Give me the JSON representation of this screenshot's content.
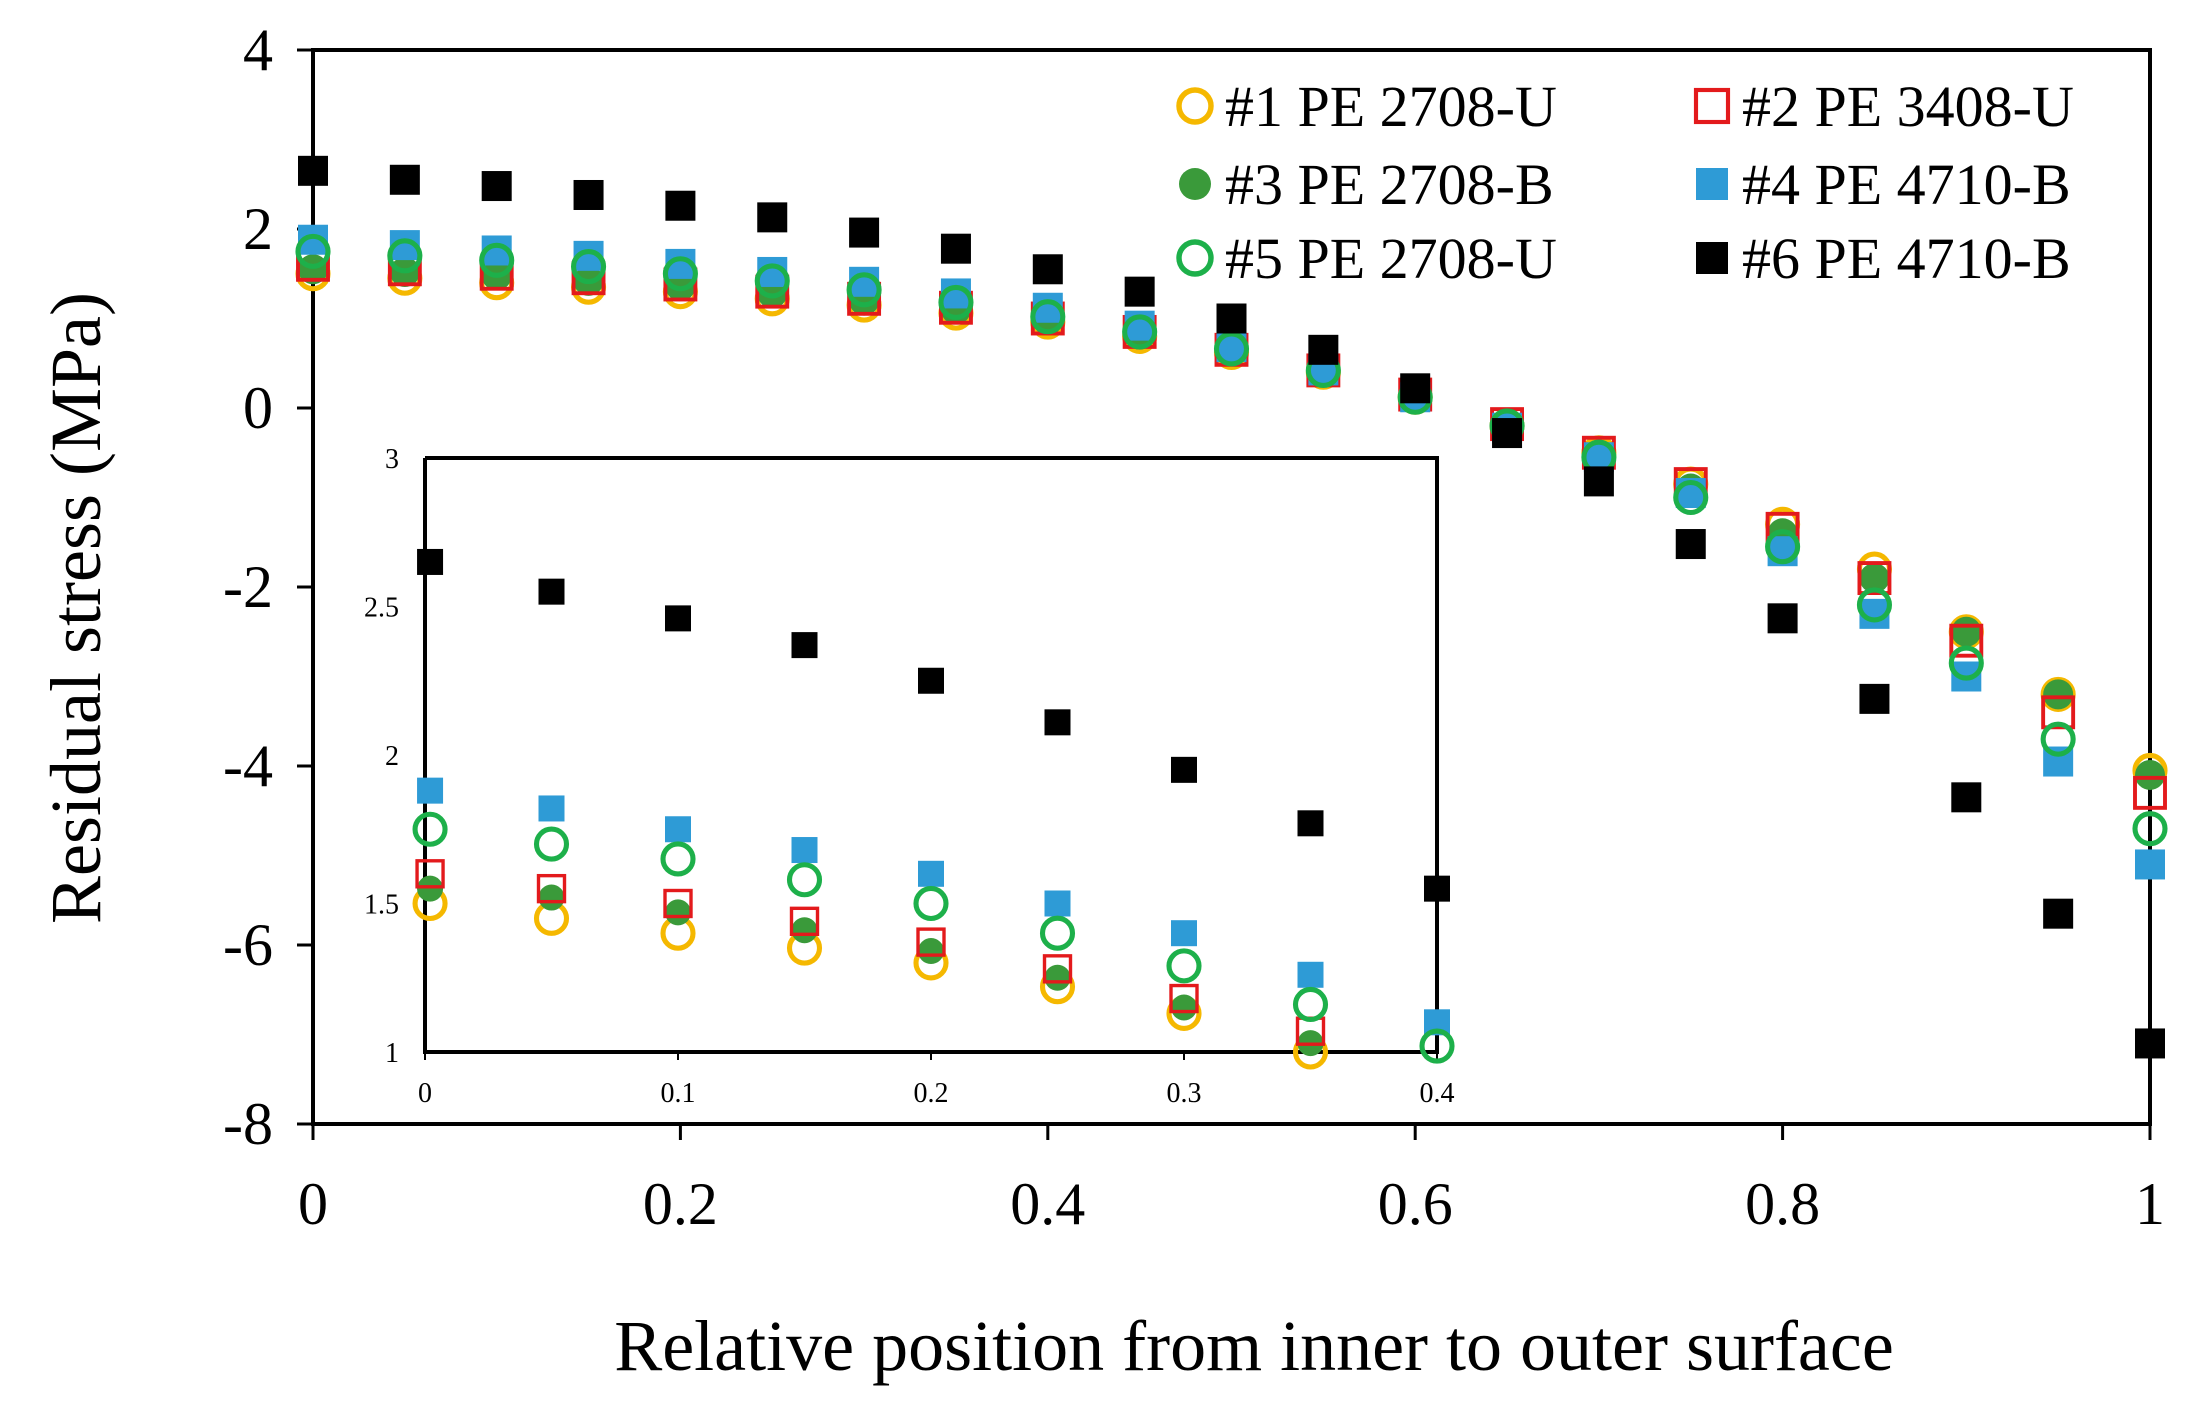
{
  "chart_data": [
    {
      "type": "scatter",
      "xlabel": "Relative position from inner to outer surface",
      "ylabel": "Residual stress (MPa)",
      "xlim": [
        0,
        1
      ],
      "ylim": [
        -8,
        4
      ],
      "xticks": [
        0,
        0.2,
        0.4,
        0.6,
        0.8,
        1
      ],
      "xtick_labels": [
        "0",
        "0.2",
        "0.4",
        "0.6",
        "0.8",
        "1"
      ],
      "yticks": [
        -8,
        -6,
        -4,
        -2,
        0,
        2,
        4
      ],
      "ytick_labels": [
        "-8",
        "-6",
        "-4",
        "-2",
        "0",
        "2",
        "4"
      ],
      "legend_position": "top-right",
      "x": [
        0,
        0.05,
        0.1,
        0.15,
        0.2,
        0.25,
        0.3,
        0.35,
        0.4,
        0.45,
        0.5,
        0.55,
        0.6,
        0.65,
        0.7,
        0.75,
        0.8,
        0.85,
        0.9,
        0.95,
        1
      ],
      "series": [
        {
          "name": "#1 PE 2708-U",
          "marker": "open-circle",
          "color": "#F5B800",
          "values": [
            1.5,
            1.45,
            1.4,
            1.35,
            1.3,
            1.22,
            1.15,
            1.06,
            0.96,
            0.8,
            0.62,
            0.4,
            0.12,
            -0.2,
            -0.5,
            -0.85,
            -1.3,
            -1.8,
            -2.5,
            -3.2,
            -4.05
          ]
        },
        {
          "name": "#2 PE 3408-U",
          "marker": "open-square",
          "color": "#E31A1C",
          "values": [
            1.6,
            1.55,
            1.5,
            1.45,
            1.38,
            1.3,
            1.22,
            1.12,
            1.0,
            0.85,
            0.65,
            0.42,
            0.15,
            -0.18,
            -0.5,
            -0.85,
            -1.35,
            -1.9,
            -2.6,
            -3.4,
            -4.3
          ]
        },
        {
          "name": "#3 PE 2708-B",
          "marker": "filled-circle",
          "color": "#3A9A3A",
          "values": [
            1.55,
            1.52,
            1.48,
            1.42,
            1.36,
            1.28,
            1.2,
            1.1,
            0.98,
            0.82,
            0.64,
            0.42,
            0.14,
            -0.2,
            -0.52,
            -0.9,
            -1.4,
            -1.9,
            -2.5,
            -3.2,
            -4.1
          ]
        },
        {
          "name": "#4 PE 4710-B",
          "marker": "filled-square",
          "color": "#2E9BD6",
          "values": [
            1.88,
            1.82,
            1.76,
            1.7,
            1.61,
            1.52,
            1.41,
            1.28,
            1.12,
            0.92,
            0.68,
            0.42,
            0.12,
            -0.22,
            -0.55,
            -0.95,
            -1.6,
            -2.3,
            -3.0,
            -3.95,
            -5.1
          ]
        },
        {
          "name": "#5 PE 2708-U",
          "marker": "open-circle",
          "color": "#1DB04A",
          "values": [
            1.75,
            1.7,
            1.65,
            1.58,
            1.5,
            1.42,
            1.32,
            1.18,
            1.02,
            0.85,
            0.66,
            0.42,
            0.12,
            -0.2,
            -0.55,
            -1.0,
            -1.55,
            -2.2,
            -2.85,
            -3.7,
            -4.7
          ]
        },
        {
          "name": "#6 PE 4710-B",
          "marker": "filled-square",
          "color": "#000000",
          "values": [
            2.65,
            2.55,
            2.48,
            2.38,
            2.26,
            2.13,
            1.96,
            1.78,
            1.55,
            1.3,
            1.0,
            0.65,
            0.22,
            -0.28,
            -0.82,
            -1.52,
            -2.35,
            -3.25,
            -4.35,
            -5.65,
            -7.1
          ]
        }
      ]
    },
    {
      "type": "scatter",
      "inset": true,
      "xlim": [
        0,
        0.4
      ],
      "ylim": [
        1,
        3
      ],
      "xticks": [
        0,
        0.1,
        0.2,
        0.3,
        0.4
      ],
      "xtick_labels": [
        "0",
        "0.1",
        "0.2",
        "0.3",
        "0.4"
      ],
      "yticks": [
        1,
        1.5,
        2,
        2.5,
        3
      ],
      "ytick_labels": [
        "1",
        "1.5",
        "2",
        "2.5",
        "3"
      ],
      "x": [
        0.002,
        0.05,
        0.1,
        0.15,
        0.2,
        0.25,
        0.3,
        0.35,
        0.4
      ],
      "series": [
        {
          "name": "#1 PE 2708-U",
          "values": [
            1.5,
            1.45,
            1.4,
            1.35,
            1.3,
            1.22,
            1.13,
            1.0,
            null
          ]
        },
        {
          "name": "#2 PE 3408-U",
          "values": [
            1.6,
            1.55,
            1.5,
            1.44,
            1.37,
            1.28,
            1.18,
            1.07,
            null
          ]
        },
        {
          "name": "#3 PE 2708-B",
          "values": [
            1.55,
            1.52,
            1.47,
            1.41,
            1.34,
            1.25,
            1.15,
            1.03,
            null
          ]
        },
        {
          "name": "#4 PE 4710-B",
          "values": [
            1.88,
            1.82,
            1.75,
            1.68,
            1.6,
            1.5,
            1.4,
            1.26,
            1.1
          ]
        },
        {
          "name": "#5 PE 2708-U",
          "values": [
            1.75,
            1.7,
            1.65,
            1.58,
            1.5,
            1.4,
            1.29,
            1.16,
            1.02
          ]
        },
        {
          "name": "#6 PE 4710-B",
          "values": [
            2.65,
            2.55,
            2.46,
            2.37,
            2.25,
            2.11,
            1.95,
            1.77,
            1.55
          ]
        }
      ]
    }
  ]
}
